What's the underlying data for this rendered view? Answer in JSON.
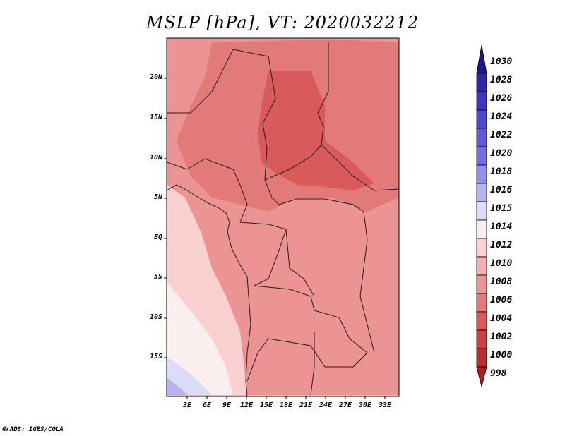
{
  "title": "MSLP [hPa], VT: 2020032212",
  "credit": "GrADS: IGES/COLA",
  "map": {
    "region": "Central Africa",
    "lon_range": [
      0,
      35
    ],
    "lat_range": [
      -20,
      25
    ]
  },
  "y_ticks": [
    "20N",
    "15N",
    "10N",
    "5N",
    "EQ",
    "5S",
    "10S",
    "15S"
  ],
  "x_ticks": [
    "3E",
    "6E",
    "9E",
    "12E",
    "15E",
    "18E",
    "21E",
    "24E",
    "27E",
    "30E",
    "33E"
  ],
  "colorbar": {
    "levels": [
      "1030",
      "1028",
      "1026",
      "1024",
      "1022",
      "1020",
      "1018",
      "1016",
      "1015",
      "1014",
      "1012",
      "1010",
      "1008",
      "1006",
      "1004",
      "1002",
      "1000",
      "998"
    ],
    "colors": [
      "#1c1a8a",
      "#2a2aa8",
      "#3838c0",
      "#4a4ad0",
      "#5c5cd8",
      "#7070e0",
      "#9090e8",
      "#b4b4f0",
      "#dcdcf8",
      "#fbeeee",
      "#f8d0d0",
      "#f4b0b0",
      "#ec9494",
      "#e27a7a",
      "#d85a5a",
      "#cc4040",
      "#b83030",
      "#a82020"
    ]
  },
  "contour_colors": {
    "1014": "#fbeeee",
    "1012": "#f8d0d0",
    "1010": "#f4b0b0",
    "1008": "#ec9494",
    "1006": "#e27a7a",
    "1004": "#d85a5a",
    "1016": "#dcdcf8",
    "1018": "#b4b4f0"
  }
}
